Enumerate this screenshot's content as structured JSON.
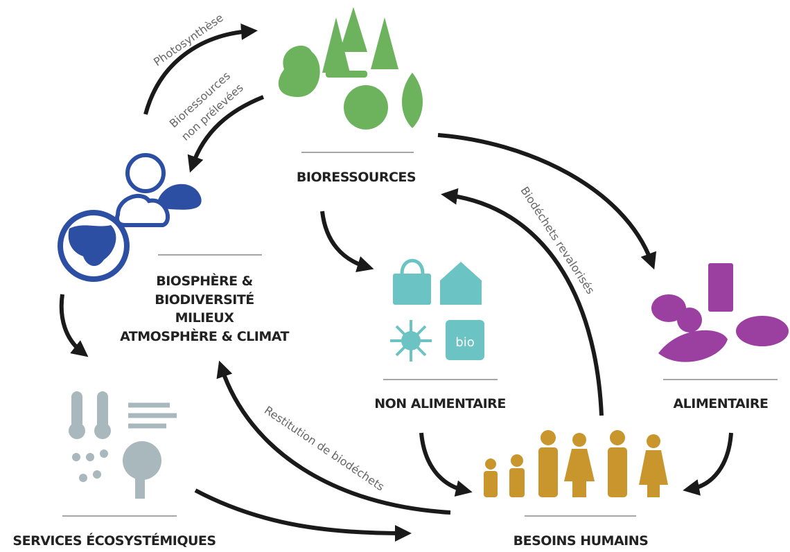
{
  "nodes": [
    {
      "label": [
        "BIORESSOURCES"
      ]
    },
    {
      "label": [
        "BIOSPHÈRE &",
        "BIODIVERSITÉ",
        "MILIEUX",
        "ATMOSPHÈRE & CLIMAT"
      ]
    },
    {
      "label": [
        "NON ALIMENTAIRE"
      ],
      "icon_text": "bio"
    },
    {
      "label": [
        "ALIMENTAIRE"
      ]
    },
    {
      "label": [
        "SERVICES ÉCOSYSTÉMIQUES"
      ]
    },
    {
      "label": [
        "BESOINS HUMAINS"
      ]
    }
  ],
  "edges": [
    {
      "label": [
        "Photosynthèse"
      ]
    },
    {
      "label": [
        "Bioressources",
        "non prélevées"
      ]
    },
    {
      "label": [
        "Biodéchets revalorisés"
      ]
    },
    {
      "label": [
        "Restitution de biodéchets"
      ]
    }
  ]
}
